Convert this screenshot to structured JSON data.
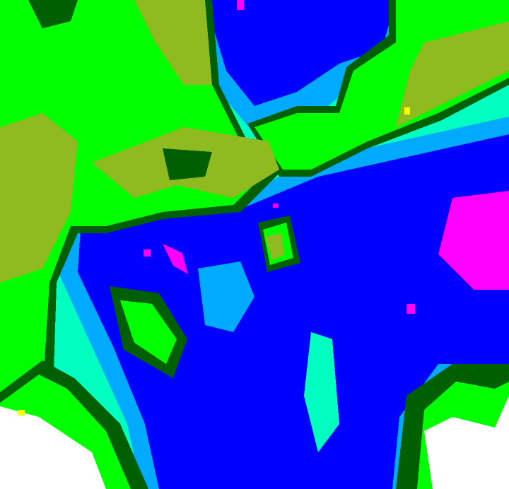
{
  "map": {
    "type": "classified raster",
    "classes": [
      {
        "color": "#00ff00"
      },
      {
        "color": "#8fbb20"
      },
      {
        "color": "#005f00"
      },
      {
        "color": "#00ffc0"
      },
      {
        "color": "#00aaff"
      },
      {
        "color": "#0000ff"
      },
      {
        "color": "#ff00ff"
      },
      {
        "color": "#ffffff"
      },
      {
        "color": "#ffff00"
      }
    ]
  }
}
